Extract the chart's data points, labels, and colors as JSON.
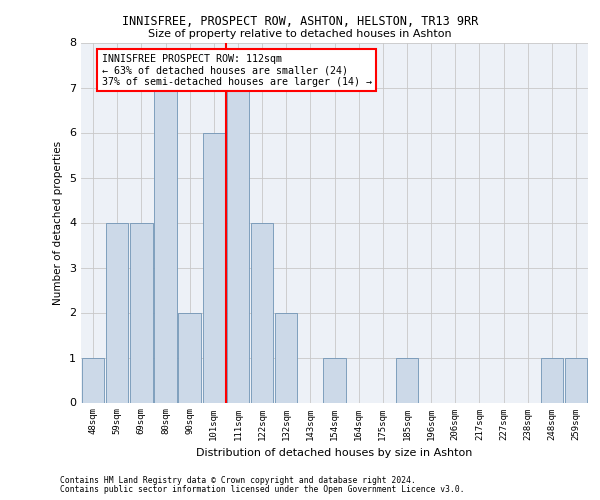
{
  "title1": "INNISFREE, PROSPECT ROW, ASHTON, HELSTON, TR13 9RR",
  "title2": "Size of property relative to detached houses in Ashton",
  "xlabel": "Distribution of detached houses by size in Ashton",
  "ylabel": "Number of detached properties",
  "bin_labels": [
    "48sqm",
    "59sqm",
    "69sqm",
    "80sqm",
    "90sqm",
    "101sqm",
    "111sqm",
    "122sqm",
    "132sqm",
    "143sqm",
    "154sqm",
    "164sqm",
    "175sqm",
    "185sqm",
    "196sqm",
    "206sqm",
    "217sqm",
    "227sqm",
    "238sqm",
    "248sqm",
    "259sqm"
  ],
  "bar_values": [
    1,
    4,
    4,
    7,
    2,
    6,
    7,
    4,
    2,
    0,
    1,
    0,
    0,
    1,
    0,
    0,
    0,
    0,
    0,
    1,
    1
  ],
  "bar_color": "#ccd9e8",
  "bar_edgecolor": "#7094b5",
  "highlight_index": 6,
  "annotation_title": "INNISFREE PROSPECT ROW: 112sqm",
  "annotation_line1": "← 63% of detached houses are smaller (24)",
  "annotation_line2": "37% of semi-detached houses are larger (14) →",
  "ylim": [
    0,
    8
  ],
  "yticks": [
    0,
    1,
    2,
    3,
    4,
    5,
    6,
    7,
    8
  ],
  "footer1": "Contains HM Land Registry data © Crown copyright and database right 2024.",
  "footer2": "Contains public sector information licensed under the Open Government Licence v3.0.",
  "bg_color": "#edf1f7",
  "grid_color": "#c8c8c8"
}
